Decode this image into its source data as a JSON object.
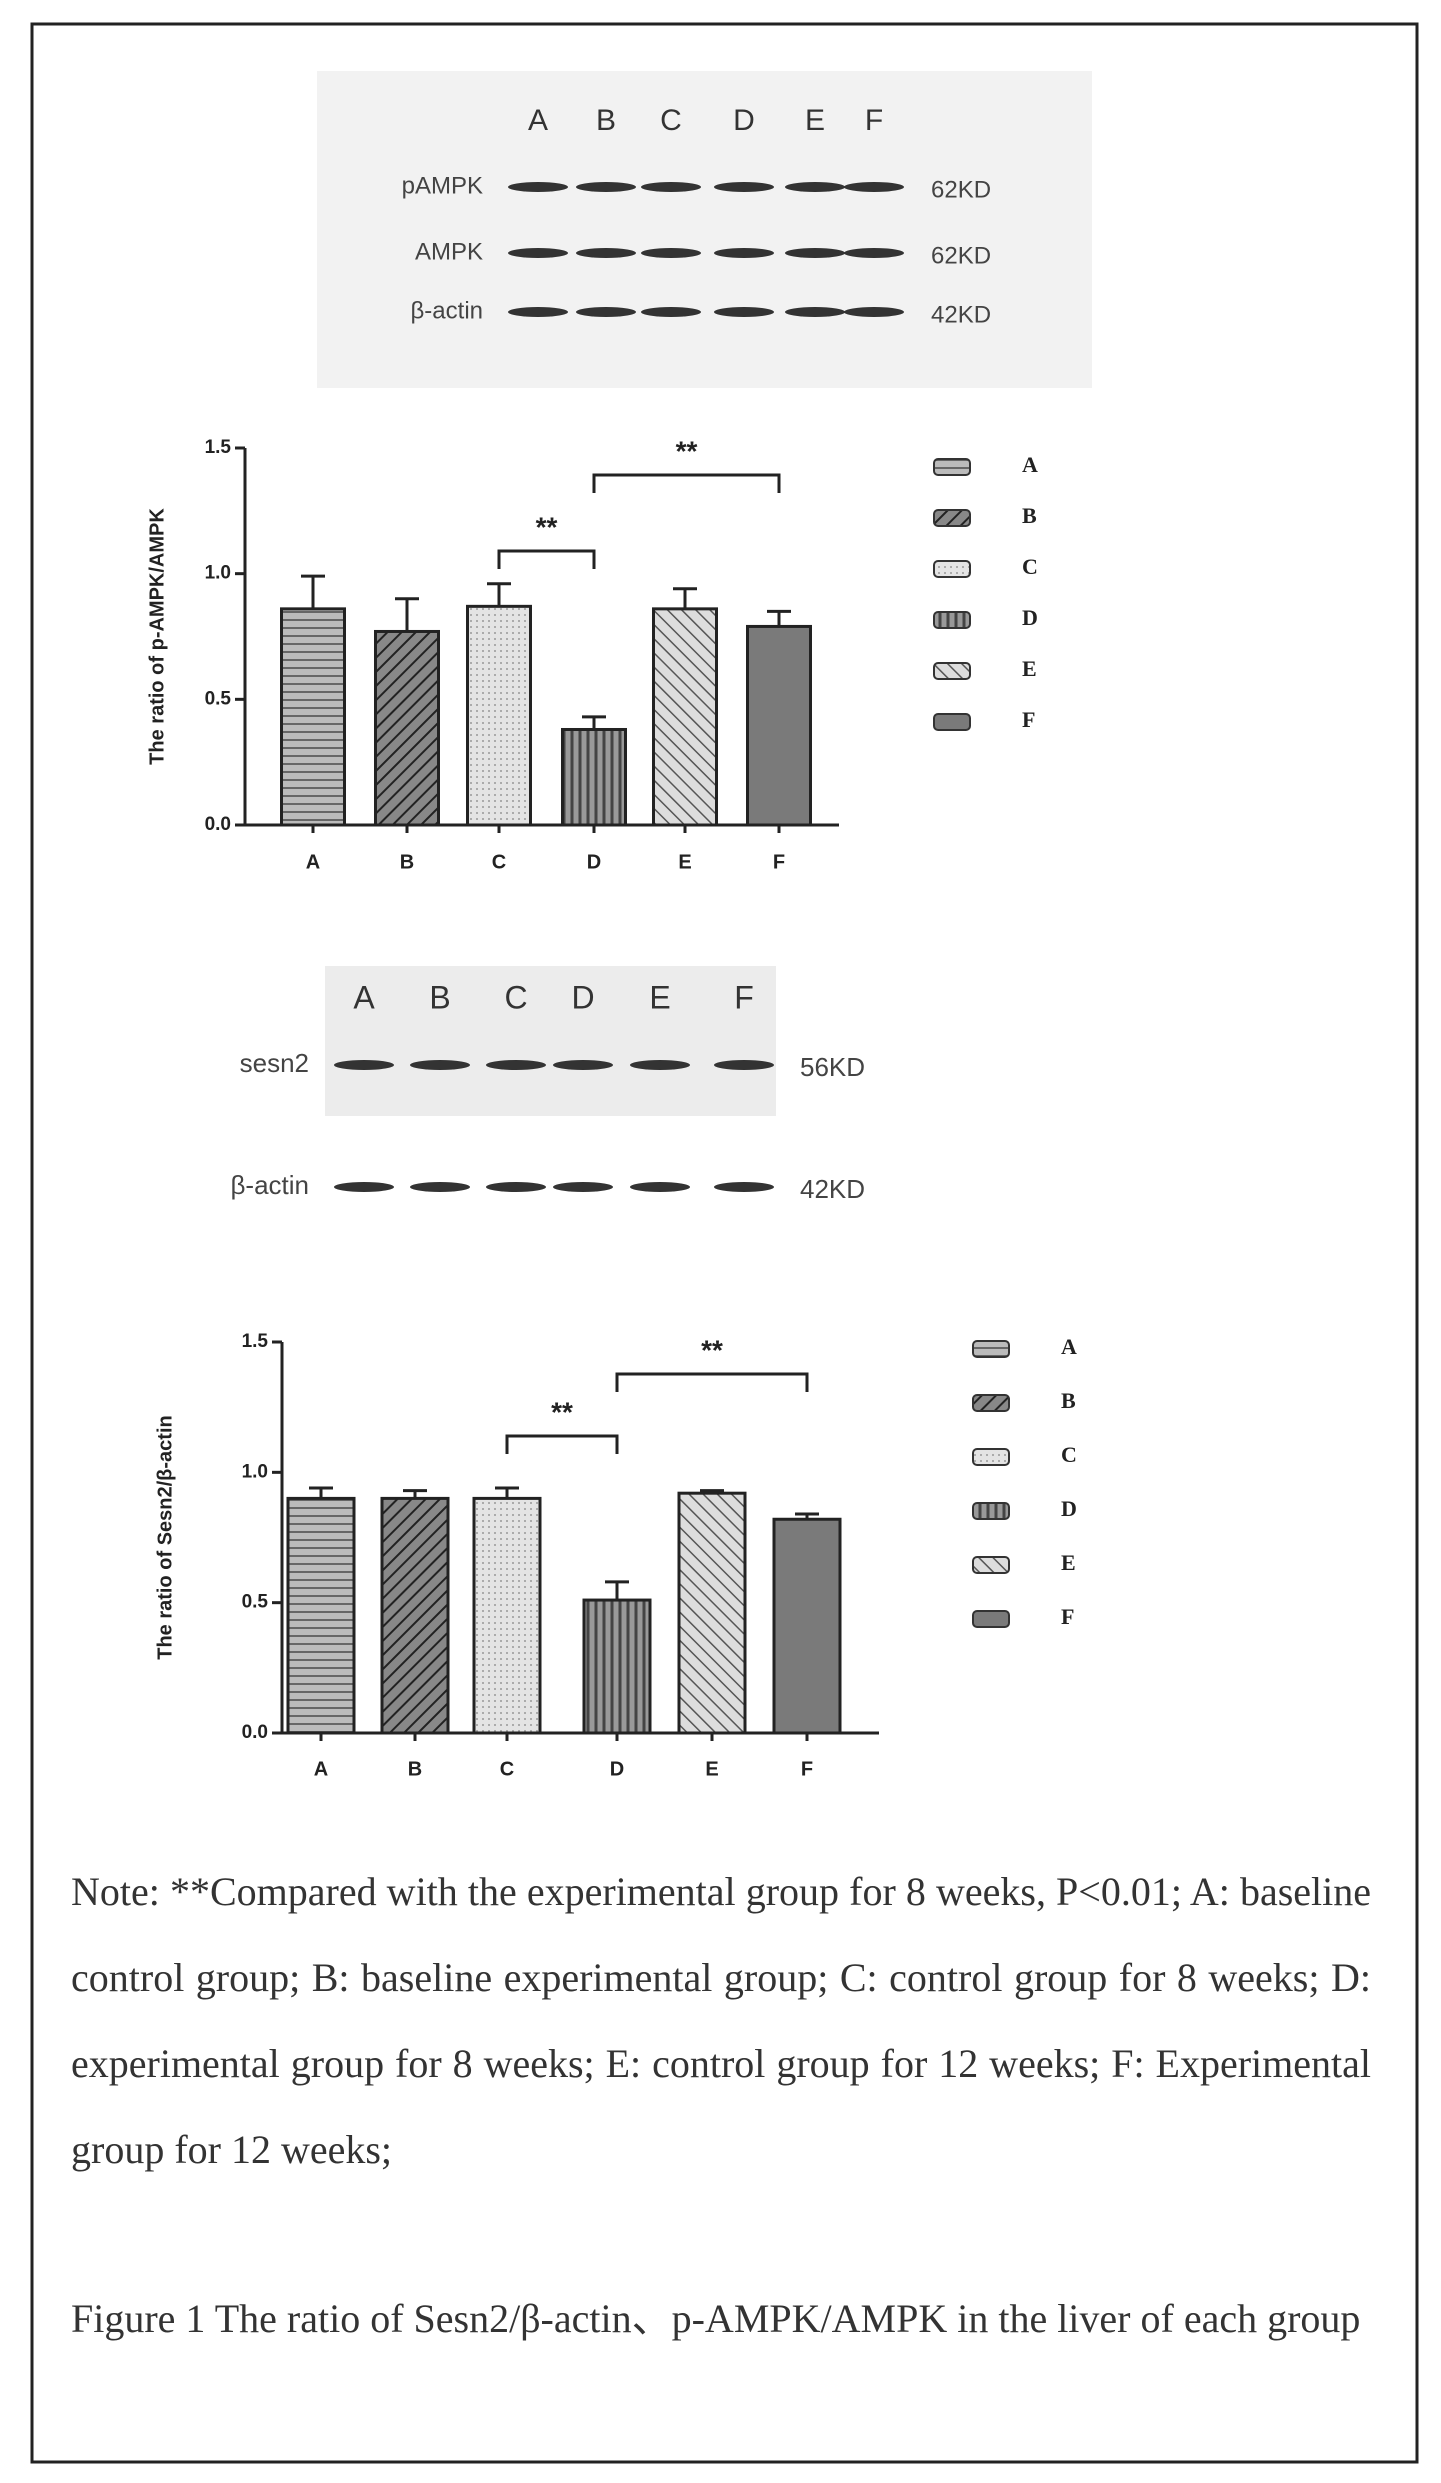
{
  "blot1": {
    "lanes": [
      "A",
      "B",
      "C",
      "D",
      "E",
      "F"
    ],
    "rows": [
      {
        "label": "pAMPK",
        "size": "62KD"
      },
      {
        "label": "AMPK",
        "size": "62KD"
      },
      {
        "label": "β-actin",
        "size": "42KD"
      }
    ]
  },
  "chart_data": [
    {
      "type": "bar",
      "y_label": "The ratio of p-AMPK/AMPK",
      "categories": [
        "A",
        "B",
        "C",
        "D",
        "E",
        "F"
      ],
      "values": [
        0.86,
        0.77,
        0.87,
        0.38,
        0.86,
        0.79
      ],
      "errors": [
        0.13,
        0.13,
        0.09,
        0.05,
        0.08,
        0.06
      ],
      "ylim": [
        0,
        1.5
      ],
      "yticks": [
        {
          "value": 0,
          "label": "0.0"
        },
        {
          "value": 0.5,
          "label": "0.5"
        },
        {
          "value": 1,
          "label": "1.0"
        },
        {
          "value": 1.5,
          "label": "1.5"
        }
      ],
      "annotations": [
        "**",
        "**"
      ]
    },
    {
      "type": "bar",
      "y_label": "The ratio of Sesn2/β-actin",
      "categories": [
        "A",
        "B",
        "C",
        "D",
        "E",
        "F"
      ],
      "values": [
        0.9,
        0.9,
        0.9,
        0.51,
        0.92,
        0.82
      ],
      "errors": [
        0.04,
        0.03,
        0.04,
        0.07,
        0.01,
        0.02
      ],
      "ylim": [
        0,
        1.5
      ],
      "yticks": [
        {
          "value": 0,
          "label": "0.0"
        },
        {
          "value": 0.5,
          "label": "0.5"
        },
        {
          "value": 1,
          "label": "1.0"
        },
        {
          "value": 1.5,
          "label": "1.5"
        }
      ],
      "annotations": [
        "**",
        "**"
      ]
    }
  ],
  "blot2": {
    "lanes": [
      "A",
      "B",
      "C",
      "D",
      "E",
      "F"
    ],
    "rows": [
      {
        "label": "sesn2",
        "size": "56KD"
      },
      {
        "label": "β-actin",
        "size": "42KD"
      }
    ]
  },
  "note": "Note: **Compared with the experimental group for 8 weeks, P<0.01; A: baseline control group; B: baseline experimental group; C: control group for 8 weeks; D: experimental group for 8 weeks; E: control group for 12 weeks; F: Experimental group for 12 weeks;",
  "caption": "Figure 1 The ratio of Sesn2/β-actin、p-AMPK/AMPK   in the liver of each group"
}
